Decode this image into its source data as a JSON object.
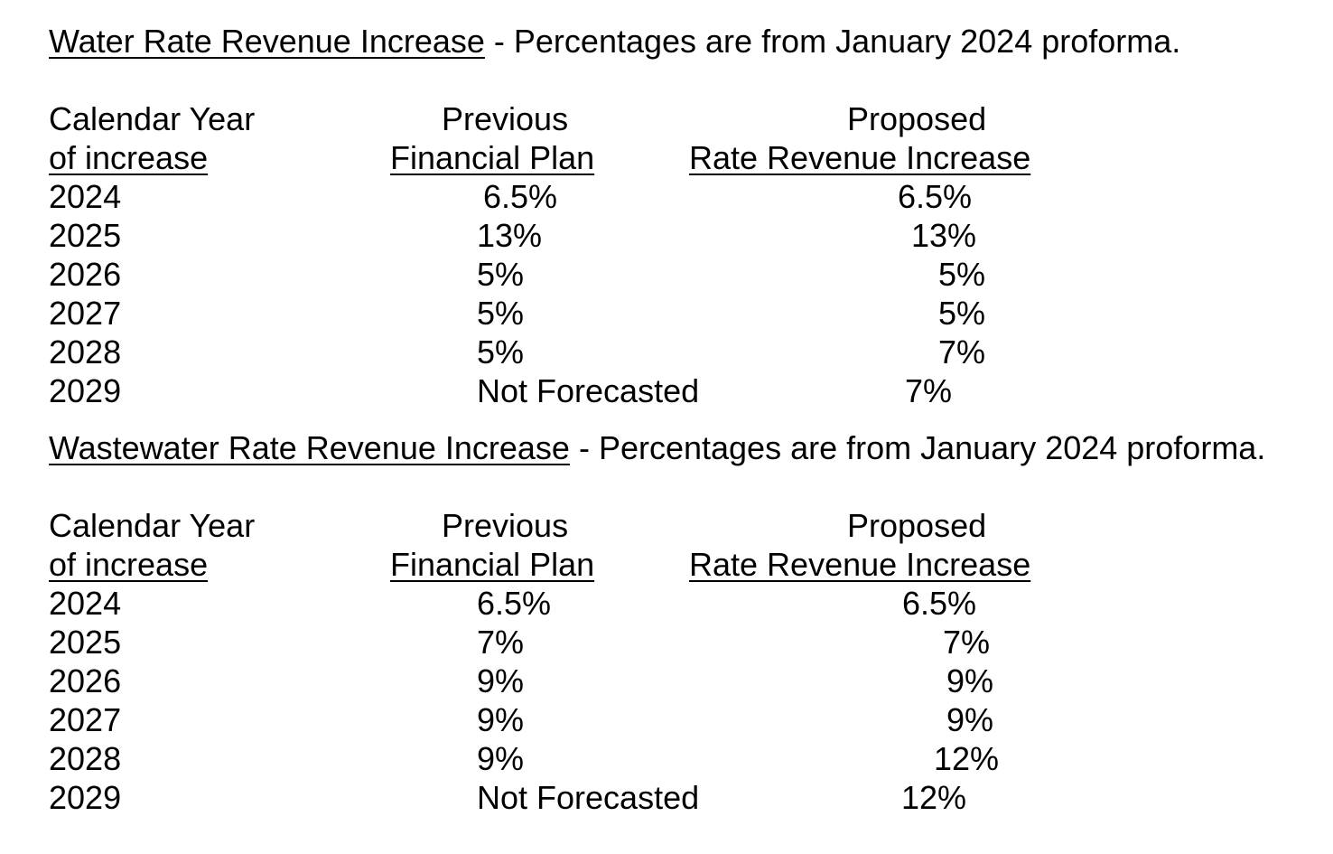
{
  "water": {
    "title": "Water Rate Revenue Increase",
    "subtitle": " - Percentages are from January 2024 proforma.",
    "headers": {
      "year_line1": "Calendar Year",
      "year_line2": "of increase",
      "prev_line1": "Previous",
      "prev_line2": "Financial Plan",
      "prop_line1": "Proposed",
      "prop_line2": "Rate Revenue Increase"
    },
    "rows": [
      {
        "year": "2024",
        "previous": "6.5%",
        "proposed": "6.5%"
      },
      {
        "year": "2025",
        "previous": "13%",
        "proposed": "13%"
      },
      {
        "year": "2026",
        "previous": "5%",
        "proposed": "5%"
      },
      {
        "year": "2027",
        "previous": "5%",
        "proposed": "5%"
      },
      {
        "year": "2028",
        "previous": "5%",
        "proposed": "7%"
      },
      {
        "year": "2029",
        "previous": "Not Forecasted",
        "proposed": "7%"
      }
    ]
  },
  "wastewater": {
    "title": "Wastewater Rate Revenue Increase",
    "subtitle": " - Percentages are from January 2024 proforma.",
    "headers": {
      "year_line1": "Calendar Year",
      "year_line2": "of increase",
      "prev_line1": "Previous",
      "prev_line2": "Financial Plan",
      "prop_line1": "Proposed",
      "prop_line2": "Rate Revenue Increase"
    },
    "rows": [
      {
        "year": "2024",
        "previous": "6.5%",
        "proposed": "6.5%"
      },
      {
        "year": "2025",
        "previous": "7%",
        "proposed": "7%"
      },
      {
        "year": "2026",
        "previous": "9%",
        "proposed": "9%"
      },
      {
        "year": "2027",
        "previous": "9%",
        "proposed": "9%"
      },
      {
        "year": "2028",
        "previous": "9%",
        "proposed": "12%"
      },
      {
        "year": "2029",
        "previous": "Not Forecasted",
        "proposed": "12%"
      }
    ]
  }
}
